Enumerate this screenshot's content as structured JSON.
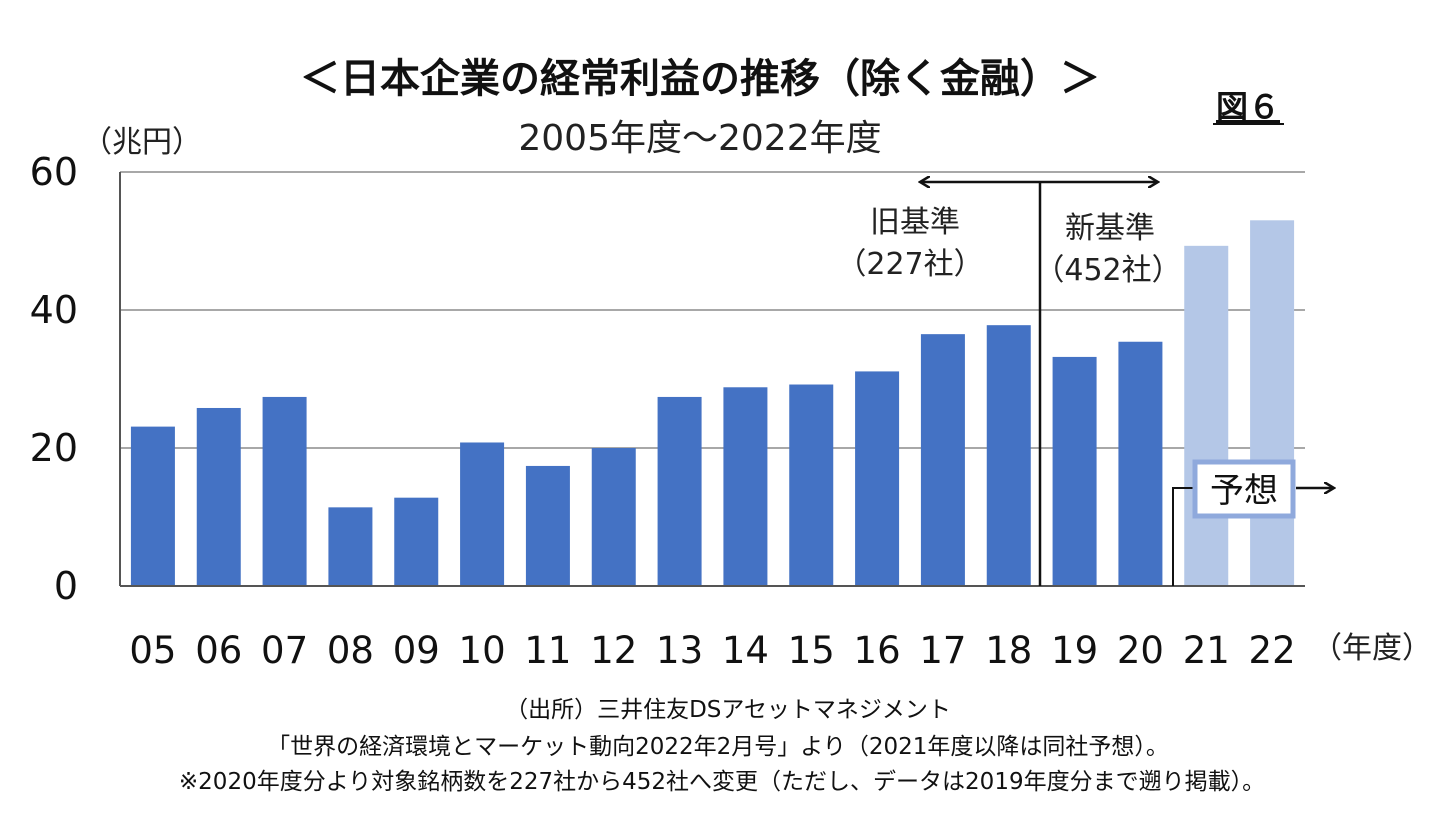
{
  "figure_label": "図６",
  "chart_data": {
    "type": "bar",
    "title": "＜日本企業の経常利益の推移（除く金融）＞",
    "subtitle": "2005年度～2022年度",
    "ylabel": "（兆円）",
    "xlabel": "（年度）",
    "ylim": [
      0,
      60
    ],
    "yticks": [
      "0",
      "20",
      "40",
      "60"
    ],
    "ytick_values": [
      0,
      20,
      40,
      60
    ],
    "grid": true,
    "categories": [
      "05",
      "06",
      "07",
      "08",
      "09",
      "10",
      "11",
      "12",
      "13",
      "14",
      "15",
      "16",
      "17",
      "18",
      "19",
      "20",
      "21",
      "22"
    ],
    "values": [
      23.1,
      25.8,
      27.4,
      11.4,
      12.8,
      20.8,
      17.4,
      20.0,
      27.4,
      28.8,
      29.2,
      31.1,
      36.5,
      37.8,
      33.2,
      35.4,
      49.3,
      53.0
    ],
    "forecast_from_index": 16,
    "colors": {
      "actual": "#4472c4",
      "forecast": "#b4c7e7",
      "grid": "#8c8c8c",
      "axis": "#555555"
    },
    "annotations": {
      "old_basis_line1": "旧基準",
      "old_basis_line2": "（227社）",
      "new_basis_line1": "新基準",
      "new_basis_line2": "（452社）",
      "forecast_label": "予想"
    }
  },
  "notes": [
    "（出所）三井住友DSアセットマネジメント",
    "「世界の経済環境とマーケット動向2022年2月号」より（2021年度以降は同社予想）。",
    "※2020年度分より対象銘柄数を227社から452社へ変更（ただし、データは2019年度分まで遡り掲載）。"
  ]
}
